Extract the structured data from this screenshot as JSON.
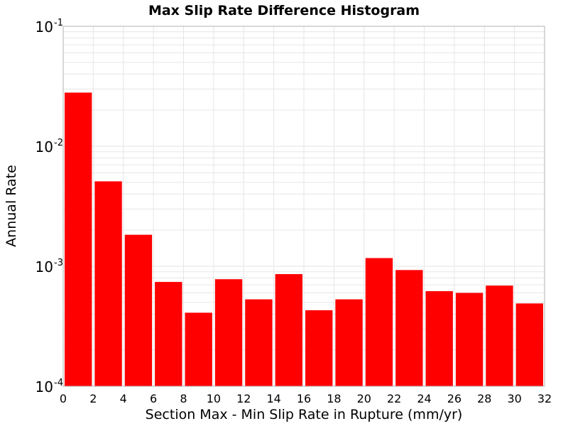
{
  "chart_data": {
    "type": "bar",
    "title": "Max Slip Rate Difference Histogram",
    "xlabel": "Section Max - Min Slip Rate in Rupture (mm/yr)",
    "ylabel": "Annual Rate",
    "x_bin_width": 2,
    "x_bin_starts": [
      0,
      2,
      4,
      6,
      8,
      10,
      12,
      14,
      16,
      18,
      20,
      22,
      24,
      26,
      28,
      30
    ],
    "values": [
      0.028,
      0.0051,
      0.00183,
      0.00074,
      0.00041,
      0.00078,
      0.00053,
      0.00086,
      0.00043,
      0.00053,
      0.00117,
      0.00093,
      0.00062,
      0.0006,
      0.00069,
      0.00049
    ],
    "xlim": [
      0,
      32
    ],
    "ylim": [
      0.0001,
      0.1
    ],
    "yscale": "log",
    "x_ticks": [
      "0",
      "2",
      "4",
      "6",
      "8",
      "10",
      "12",
      "14",
      "16",
      "18",
      "20",
      "22",
      "24",
      "26",
      "28",
      "30",
      "32"
    ],
    "y_ticks": [
      {
        "base": "10",
        "exp": "-4"
      },
      {
        "base": "10",
        "exp": "-3"
      },
      {
        "base": "10",
        "exp": "-2"
      },
      {
        "base": "10",
        "exp": "-1"
      }
    ],
    "grid": true,
    "bar_color": "#ff0000",
    "grid_color": "#e6e6e6"
  }
}
